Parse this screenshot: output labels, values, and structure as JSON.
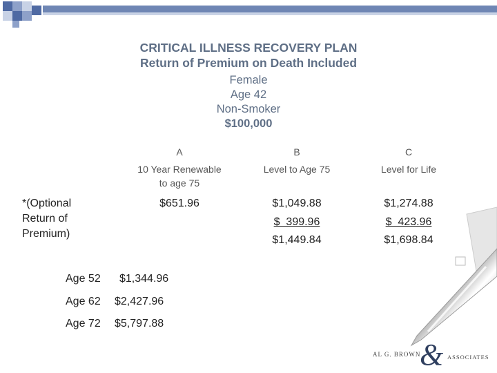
{
  "header": {
    "title": "CRITICAL ILLNESS RECOVERY PLAN",
    "subtitle": "Return of Premium on Death Included",
    "gender": "Female",
    "age": "Age 42",
    "smoker": "Non-Smoker",
    "amount": "$100,000"
  },
  "columns": [
    {
      "letter": "A",
      "line1": "10 Year Renewable",
      "line2": "to age 75",
      "values": [
        "$651.96"
      ]
    },
    {
      "letter": "B",
      "line1": "Level to Age 75",
      "values": [
        "$1,049.88",
        "$  399.96",
        "$1,449.84"
      ]
    },
    {
      "letter": "C",
      "line1": "Level for Life",
      "values": [
        "$1,274.88",
        "$  423.96",
        "$1,698.84"
      ]
    }
  ],
  "optional_note": {
    "line1": "*(Optional",
    "line2": "Return of",
    "line3": "Premium)"
  },
  "age_rows": [
    {
      "age": "Age 52",
      "amount": "$1,344.96"
    },
    {
      "age": "Age 62",
      "amount": "$2,427.96"
    },
    {
      "age": "Age 72",
      "amount": "$5,797.88"
    }
  ],
  "logo": {
    "name": "AL G. BROWN",
    "amp": "&",
    "associates": "ASSOCIATES"
  }
}
